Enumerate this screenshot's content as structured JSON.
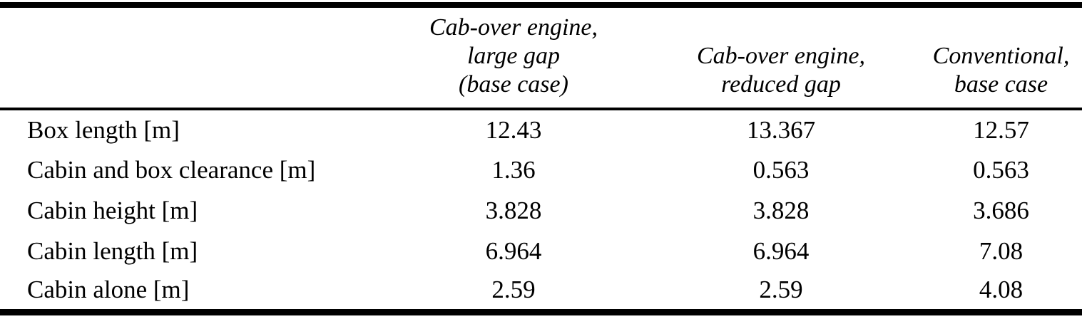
{
  "chart_data": {
    "type": "table",
    "columns": [
      "",
      "Cab-over engine,\nlarge gap\n(base case)",
      "Cab-over engine,\nreduced gap",
      "Conventional,\nbase case"
    ],
    "rows": [
      {
        "label": "Box length [m]",
        "values": [
          "12.43",
          "13.367",
          "12.57"
        ]
      },
      {
        "label": "Cabin and box clearance [m]",
        "values": [
          "1.36",
          "0.563",
          "0.563"
        ]
      },
      {
        "label": "Cabin height [m]",
        "values": [
          "3.828",
          "3.828",
          "3.686"
        ]
      },
      {
        "label": "Cabin length [m]",
        "values": [
          "6.964",
          "6.964",
          "7.08"
        ]
      },
      {
        "label": "Cabin alone [m]",
        "values": [
          "2.59",
          "2.59",
          "4.08"
        ]
      }
    ]
  }
}
